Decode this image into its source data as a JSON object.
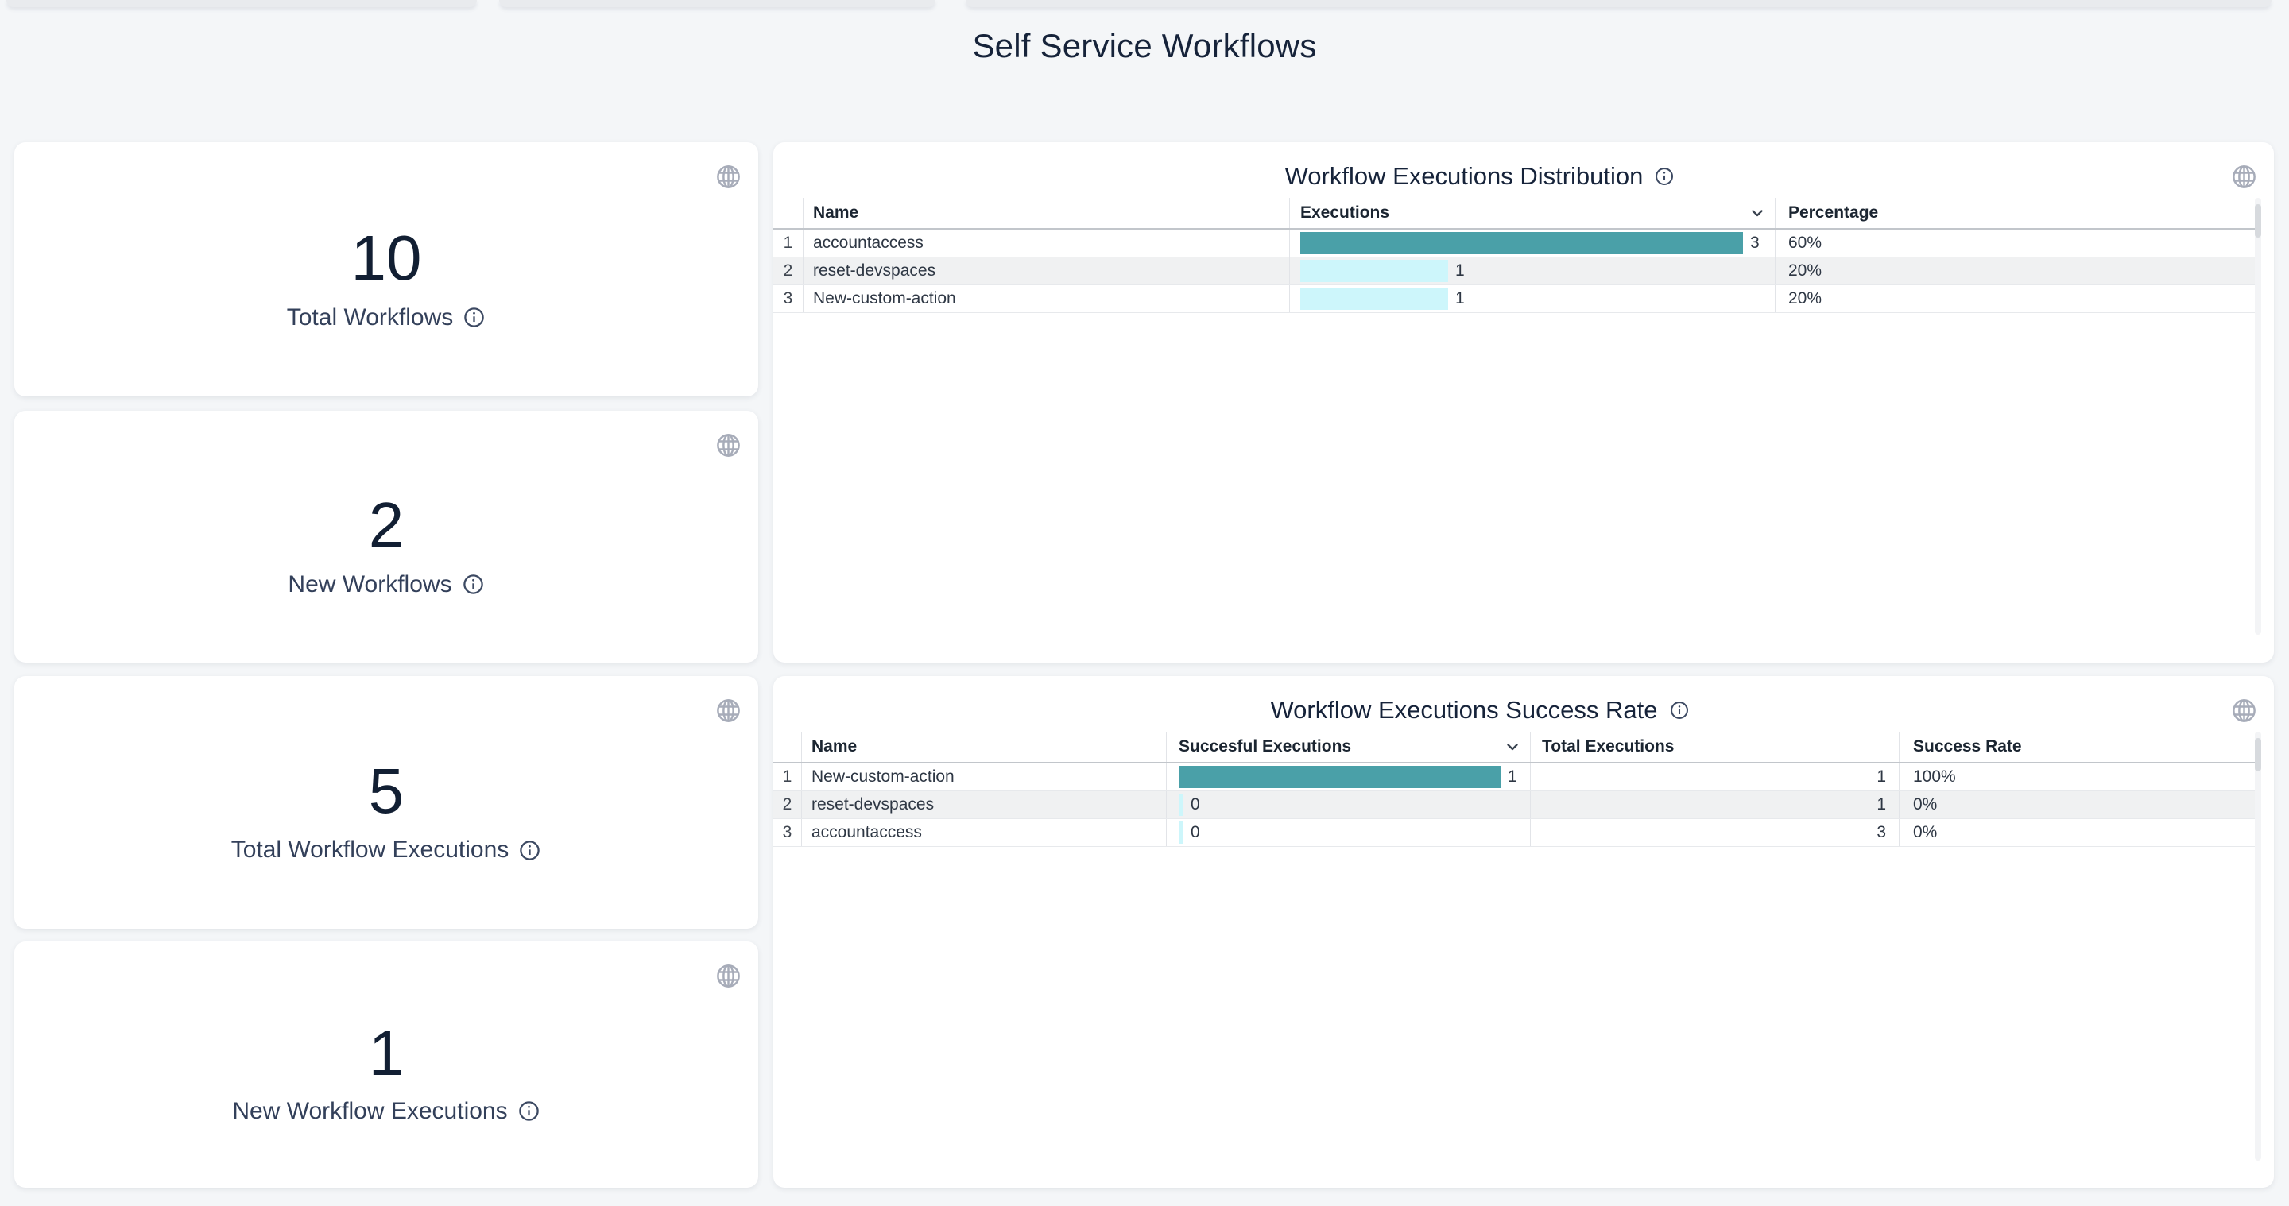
{
  "page": {
    "title": "Self Service Workflows",
    "background_color": "#f4f6f8"
  },
  "colors": {
    "bar_primary": "#4AA0A8",
    "bar_secondary": "#CDF6FB",
    "heading_text": "#16233A",
    "card_background": "#FFFFFF",
    "stripe_row": "#F0F1F2",
    "icon_gray": "#A7ACB9"
  },
  "stat_cards": [
    {
      "value": "10",
      "label": "Total Workflows"
    },
    {
      "value": "2",
      "label": "New Workflows"
    },
    {
      "value": "5",
      "label": "Total Workflow Executions"
    },
    {
      "value": "1",
      "label": "New Workflow Executions"
    }
  ],
  "panels": [
    {
      "title": "Workflow Executions Distribution",
      "columns": {
        "name": "Name",
        "executions": "Executions",
        "percentage": "Percentage"
      },
      "sorted_by": "Executions",
      "rows": [
        {
          "index": "1",
          "name": "accountaccess",
          "value": 3,
          "value_label": "3",
          "percentage": "60%"
        },
        {
          "index": "2",
          "name": "reset-devspaces",
          "value": 1,
          "value_label": "1",
          "percentage": "20%"
        },
        {
          "index": "3",
          "name": "New-custom-action",
          "value": 1,
          "value_label": "1",
          "percentage": "20%"
        }
      ]
    },
    {
      "title": "Workflow Executions Success Rate",
      "columns": {
        "name": "Name",
        "successful": "Succesful Executions",
        "total": "Total Executions",
        "rate": "Success Rate"
      },
      "sorted_by": "Succesful Executions",
      "rows": [
        {
          "index": "1",
          "name": "New-custom-action",
          "value": 1,
          "value_label": "1",
          "total": "1",
          "rate": "100%"
        },
        {
          "index": "2",
          "name": "reset-devspaces",
          "value": 0,
          "value_label": "0",
          "total": "1",
          "rate": "0%"
        },
        {
          "index": "3",
          "name": "accountaccess",
          "value": 0,
          "value_label": "0",
          "total": "3",
          "rate": "0%"
        }
      ]
    }
  ]
}
